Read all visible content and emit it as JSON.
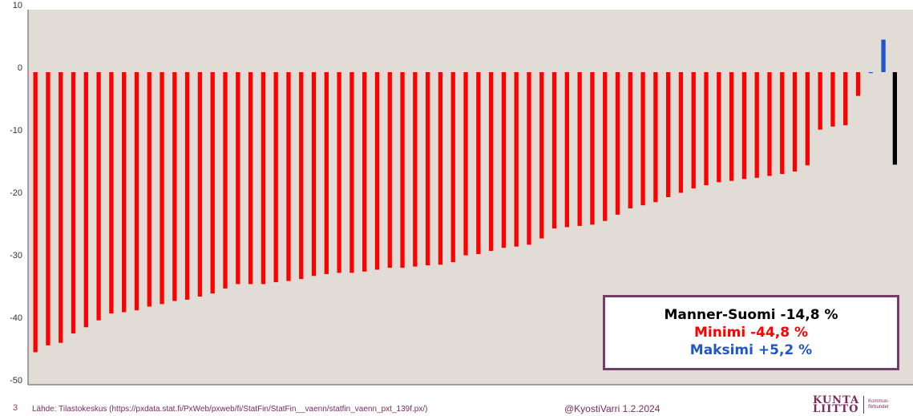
{
  "chart_data": {
    "type": "bar",
    "title": "",
    "xlabel": "",
    "ylabel": "",
    "ylim": [
      -50,
      10
    ],
    "yticks": [
      10,
      0,
      -10,
      -20,
      -30,
      -40,
      -50
    ],
    "grid": false,
    "background": "#e2dcd6",
    "colors": {
      "negative": "#ff0000",
      "positive": "#2255cc",
      "average": "#000000"
    },
    "values": [
      -44.8,
      -43.7,
      -43.3,
      -41.8,
      -40.8,
      -39.7,
      -38.6,
      -38.4,
      -38.1,
      -37.5,
      -37.1,
      -36.6,
      -36.4,
      -35.9,
      -35.4,
      -34.6,
      -33.9,
      -33.9,
      -33.9,
      -33.6,
      -33.4,
      -33.1,
      -32.6,
      -32.3,
      -32.1,
      -32.1,
      -31.9,
      -31.6,
      -31.3,
      -31.3,
      -31.1,
      -30.9,
      -30.8,
      -30.4,
      -29.3,
      -29.1,
      -28.6,
      -28.1,
      -27.9,
      -27.6,
      -26.6,
      -25.0,
      -24.8,
      -24.6,
      -24.4,
      -23.8,
      -22.8,
      -21.8,
      -21.3,
      -20.8,
      -20.0,
      -19.3,
      -18.6,
      -18.1,
      -17.6,
      -17.4,
      -17.1,
      -16.9,
      -16.6,
      -16.3,
      -15.9,
      -14.9,
      -9.2,
      -8.7,
      -8.5,
      -3.8,
      -0.1,
      5.2
    ],
    "average": {
      "label": "Manner-Suomi",
      "value": -14.8
    }
  },
  "summary": {
    "average": "Manner-Suomi -14,8 %",
    "min": "Minimi -44,8 %",
    "max": "Maksimi +5,2 %",
    "border_color": "#7a3a6a"
  },
  "footer": {
    "page_number": "3",
    "source": "Lähde: Tilastokeskus (https://pxdata.stat.fi/PxWeb/pxweb/fi/StatFin/StatFin__vaenn/statfin_vaenn_pxt_139f.px/)",
    "author": "@KyostiVarri 1.2.2024"
  },
  "logo": {
    "line1": "KUNTA",
    "line2": "LIITTO",
    "sub1": "Kommun-",
    "sub2": "förbundet"
  }
}
